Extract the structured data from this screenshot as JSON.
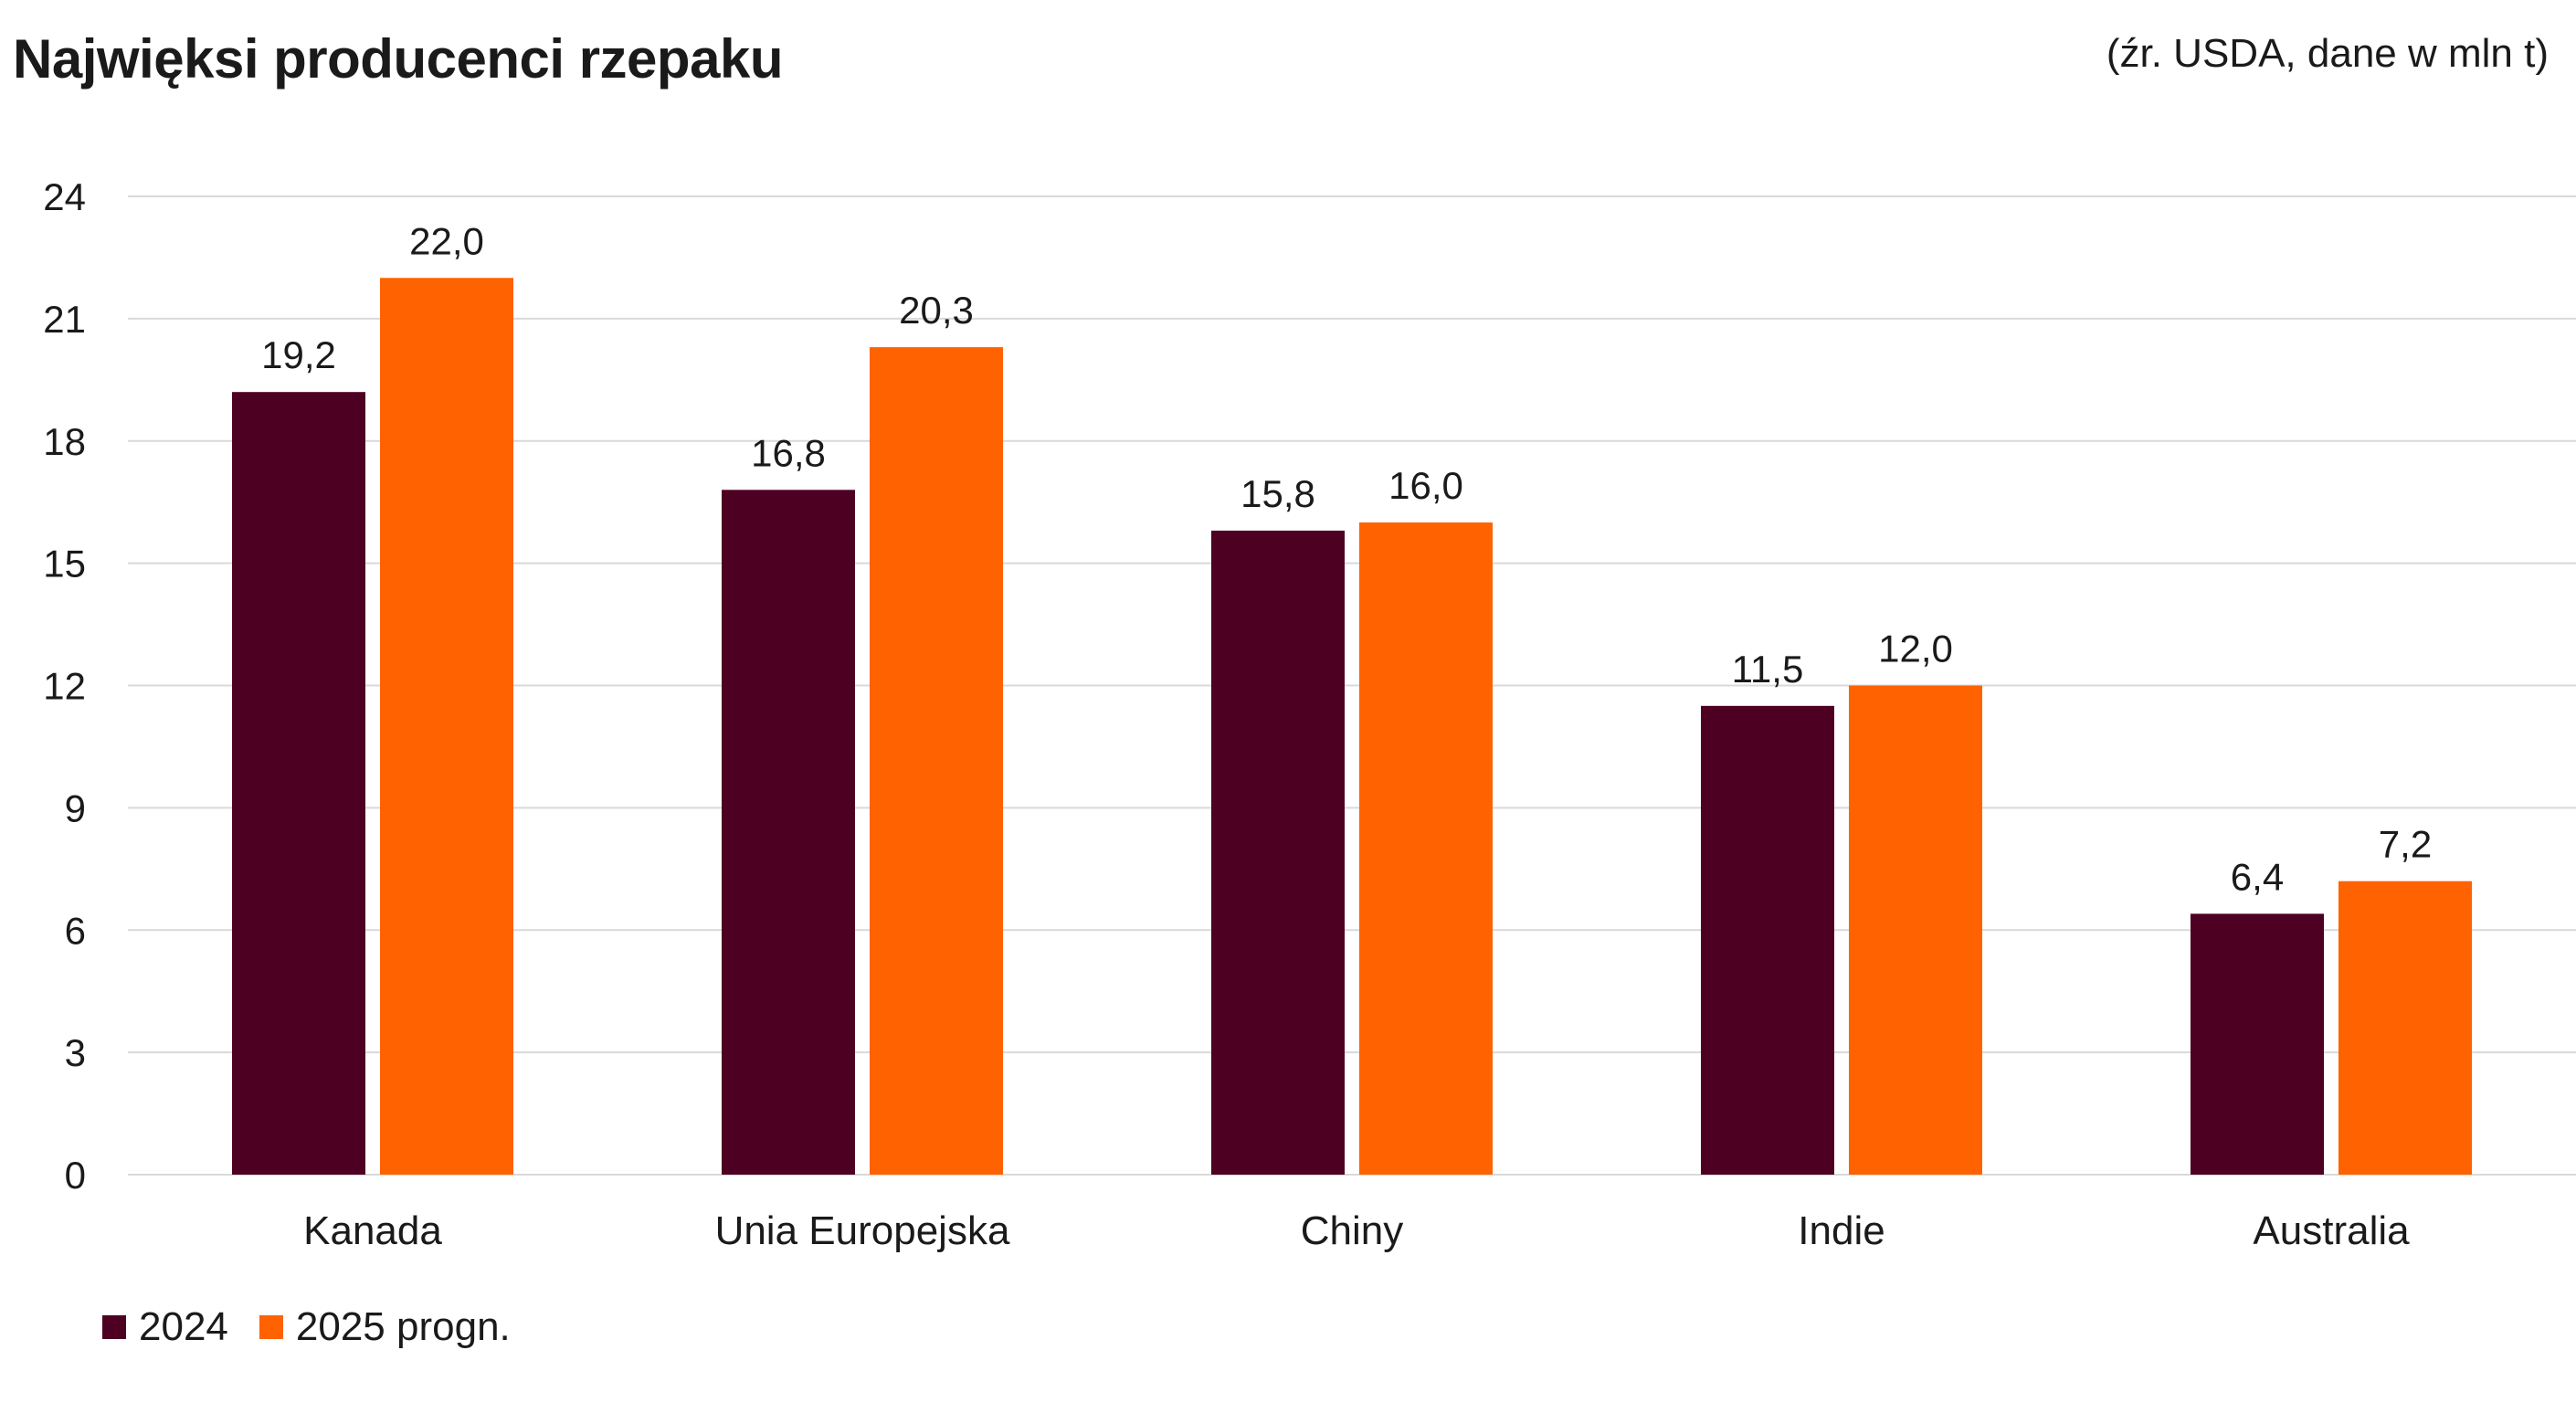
{
  "title": "Najwięksi producenci rzepaku",
  "source": "(źr. USDA, dane w mln t)",
  "colors": {
    "series_2024": "#4d0021",
    "series_2025": "#ff6200",
    "grid": "#d9d9d9",
    "text": "#1a1a1a"
  },
  "chart_data": {
    "type": "bar",
    "title": "Najwięksi producenci rzepaku",
    "xlabel": "",
    "ylabel": "",
    "ylim": [
      0,
      24
    ],
    "yticks": [
      "0",
      "3",
      "6",
      "9",
      "12",
      "15",
      "18",
      "21",
      "24"
    ],
    "ytick_values": [
      0,
      3,
      6,
      9,
      12,
      15,
      18,
      21,
      24
    ],
    "grid": true,
    "legend_position": "bottom-left",
    "categories": [
      "Kanada",
      "Unia Europejska",
      "Chiny",
      "Indie",
      "Australia"
    ],
    "series": [
      {
        "name": "2024",
        "values": [
          19.2,
          16.8,
          15.8,
          11.5,
          6.4
        ],
        "labels": [
          "19,2",
          "16,8",
          "15,8",
          "11,5",
          "6,4"
        ]
      },
      {
        "name": "2025 progn.",
        "values": [
          22.0,
          20.3,
          16.0,
          12.0,
          7.2
        ],
        "labels": [
          "22,0",
          "20,3",
          "16,0",
          "12,0",
          "7,2"
        ]
      }
    ]
  }
}
